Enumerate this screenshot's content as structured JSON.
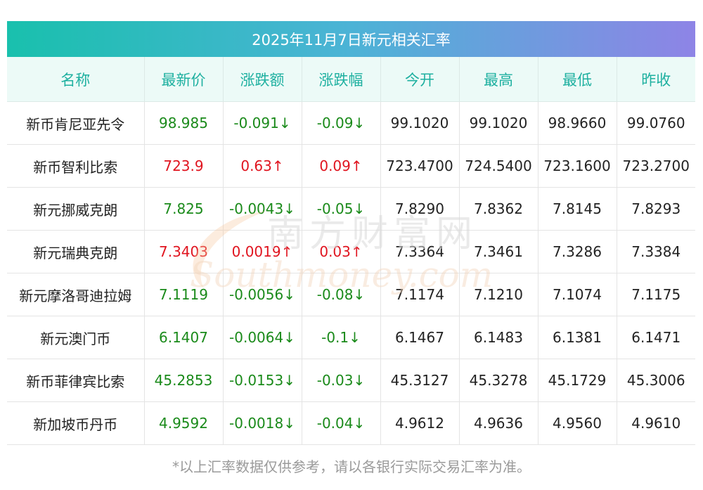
{
  "title": "2025年11月7日新元相关汇率",
  "columns": [
    "名称",
    "最新价",
    "涨跌额",
    "涨跌幅",
    "今开",
    "最高",
    "最低",
    "昨收"
  ],
  "rows": [
    {
      "name": "新币肯尼亚先令",
      "latest": "98.985",
      "change": "-0.091↓",
      "pct": "-0.09↓",
      "open": "99.1020",
      "high": "99.1020",
      "low": "98.9660",
      "prev": "99.0760",
      "trend": "down"
    },
    {
      "name": "新币智利比索",
      "latest": "723.9",
      "change": "0.63↑",
      "pct": "0.09↑",
      "open": "723.4700",
      "high": "724.5400",
      "low": "723.1600",
      "prev": "723.2700",
      "trend": "up"
    },
    {
      "name": "新元挪威克朗",
      "latest": "7.825",
      "change": "-0.0043↓",
      "pct": "-0.05↓",
      "open": "7.8290",
      "high": "7.8362",
      "low": "7.8145",
      "prev": "7.8293",
      "trend": "down"
    },
    {
      "name": "新元瑞典克朗",
      "latest": "7.3403",
      "change": "0.0019↑",
      "pct": "0.03↑",
      "open": "7.3364",
      "high": "7.3461",
      "low": "7.3286",
      "prev": "7.3384",
      "trend": "up"
    },
    {
      "name": "新元摩洛哥迪拉姆",
      "latest": "7.1119",
      "change": "-0.0056↓",
      "pct": "-0.08↓",
      "open": "7.1174",
      "high": "7.1210",
      "low": "7.1074",
      "prev": "7.1175",
      "trend": "down"
    },
    {
      "name": "新元澳门币",
      "latest": "6.1407",
      "change": "-0.0064↓",
      "pct": "-0.1↓",
      "open": "6.1467",
      "high": "6.1483",
      "low": "6.1381",
      "prev": "6.1471",
      "trend": "down"
    },
    {
      "name": "新币菲律宾比索",
      "latest": "45.2853",
      "change": "-0.0153↓",
      "pct": "-0.03↓",
      "open": "45.3127",
      "high": "45.3278",
      "low": "45.1729",
      "prev": "45.3006",
      "trend": "down"
    },
    {
      "name": "新加坡币丹币",
      "latest": "4.9592",
      "change": "-0.0018↓",
      "pct": "-0.04↓",
      "open": "4.9612",
      "high": "4.9636",
      "low": "4.9560",
      "prev": "4.9610",
      "trend": "down"
    }
  ],
  "note": "*以上汇率数据仅供参考，请以各银行实际交易汇率为准。",
  "watermark": {
    "cn": "南方财富网",
    "en": "Southmoney.com"
  },
  "colors": {
    "up": "#e0141f",
    "down": "#1a8a1a",
    "header_text": "#1eb0a0"
  }
}
